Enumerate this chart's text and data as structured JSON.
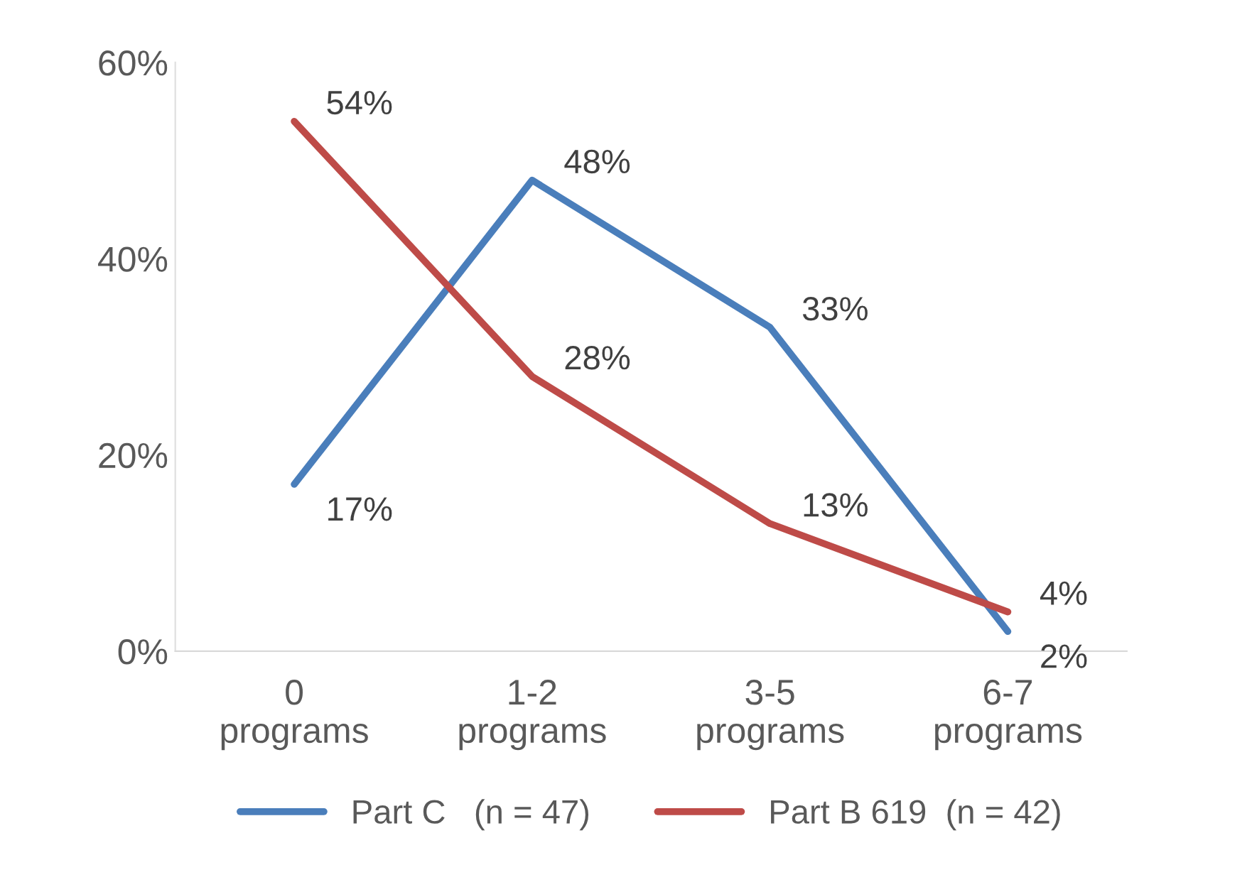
{
  "chart_data": {
    "type": "line",
    "categories": [
      "0 programs",
      "1-2 programs",
      "3-5 programs",
      "6-7 programs"
    ],
    "series": [
      {
        "name": "Part C   (n = 47)",
        "color": "#4a7ebb",
        "values": [
          17,
          48,
          33,
          2
        ],
        "value_labels": [
          "17%",
          "48%",
          "33%",
          "2%"
        ]
      },
      {
        "name": "Part B 619  (n = 42)",
        "color": "#be4b48",
        "values": [
          54,
          28,
          13,
          4
        ],
        "value_labels": [
          "54%",
          "28%",
          "13%",
          "4%"
        ]
      }
    ],
    "ylim": [
      0,
      60
    ],
    "yticks": [
      {
        "value": 0,
        "label": "0%"
      },
      {
        "value": 20,
        "label": "20%"
      },
      {
        "value": 40,
        "label": "40%"
      },
      {
        "value": 60,
        "label": "60%"
      }
    ],
    "grid": false,
    "legend": "bottom",
    "marker": "none",
    "line_style": "solid"
  }
}
